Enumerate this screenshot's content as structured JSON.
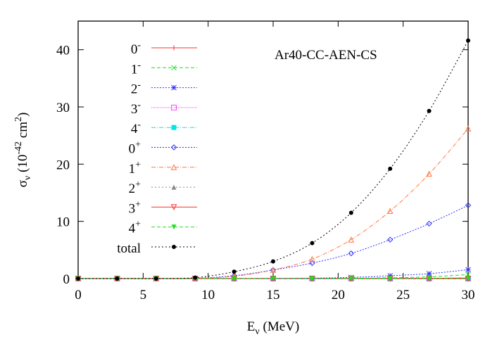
{
  "chart_data": {
    "type": "line",
    "title": "Ar40-CC-AEN-CS",
    "xlabel": "Eν (MeV)",
    "xlabel_main": "E",
    "xlabel_sub": "ν",
    "xlabel_unit": " (MeV)",
    "ylabel_main": "σ",
    "ylabel_sub": "ν",
    "ylabel_unit_pre": " (10",
    "ylabel_exp": "-42",
    "ylabel_unit_mid": " cm",
    "ylabel_exp2": "2",
    "ylabel_unit_post": ")",
    "xlim": [
      0,
      30
    ],
    "ylim": [
      0,
      45
    ],
    "xticks": [
      0,
      5,
      10,
      15,
      20,
      25,
      30
    ],
    "yticks": [
      0,
      10,
      20,
      30,
      40
    ],
    "grid": false,
    "legend_placement": "top-left",
    "x": [
      0,
      3,
      6,
      9,
      12,
      15,
      18,
      21,
      24,
      27,
      30
    ],
    "series": [
      {
        "name": "0",
        "sup": "-",
        "color": "#ff3030",
        "dash": "",
        "marker": "plus",
        "values": [
          0,
          0,
          0,
          0,
          0,
          0,
          0,
          0,
          0.02,
          0.05,
          0.1
        ]
      },
      {
        "name": "1",
        "sup": "-",
        "color": "#22dd22",
        "dash": "5,3",
        "marker": "cross",
        "values": [
          0,
          0,
          0,
          0,
          0,
          0,
          0.01,
          0.05,
          0.15,
          0.3,
          0.7
        ]
      },
      {
        "name": "2",
        "sup": "-",
        "color": "#3030ff",
        "dash": "2,2",
        "marker": "star",
        "values": [
          0,
          0,
          0,
          0,
          0,
          0.02,
          0.08,
          0.2,
          0.5,
          0.85,
          1.55
        ]
      },
      {
        "name": "3",
        "sup": "-",
        "color": "#ff44ff",
        "dash": "1,1",
        "marker": "square",
        "values": [
          0,
          0,
          0,
          0,
          0,
          0,
          0,
          0,
          0,
          0,
          0
        ]
      },
      {
        "name": "4",
        "sup": "-",
        "color": "#00e5e5",
        "dash": "6,2,1,2",
        "marker": "fsquare",
        "values": [
          0,
          0,
          0,
          0,
          0,
          0,
          0,
          0,
          0,
          0,
          0
        ]
      },
      {
        "name": "0",
        "sup": "+",
        "color": "#3030ff",
        "dash": "2,2",
        "marker": "diamond",
        "values": [
          0,
          0,
          0,
          0.05,
          0.5,
          1.5,
          2.7,
          4.4,
          6.8,
          9.6,
          12.8
        ]
      },
      {
        "name": "1",
        "sup": "+",
        "color": "#ff7744",
        "dash": "6,2,1,2",
        "marker": "triangle",
        "values": [
          0,
          0,
          0,
          0.05,
          0.4,
          1.5,
          3.4,
          6.8,
          11.8,
          18.3,
          26.2
        ]
      },
      {
        "name": "2",
        "sup": "+",
        "color": "#888888",
        "dash": "2,3",
        "marker": "ftriangle",
        "values": [
          0,
          0,
          0,
          0,
          0,
          0,
          0,
          0,
          0,
          0,
          0
        ]
      },
      {
        "name": "3",
        "sup": "+",
        "color": "#ff3030",
        "dash": "",
        "marker": "dtriangle",
        "values": [
          0,
          0,
          0,
          0,
          0,
          0,
          0,
          0,
          0,
          0,
          0
        ]
      },
      {
        "name": "4",
        "sup": "+",
        "color": "#22dd22",
        "dash": "5,3",
        "marker": "fdtriangle",
        "values": [
          0,
          0,
          0,
          0,
          0,
          0,
          0,
          0,
          0,
          0,
          0
        ]
      },
      {
        "name": "total",
        "sup": "",
        "color": "#000000",
        "dash": "2,3",
        "marker": "dot",
        "values": [
          0,
          0,
          0,
          0.15,
          1.2,
          3.0,
          6.2,
          11.5,
          19.2,
          29.3,
          41.6
        ]
      }
    ]
  }
}
